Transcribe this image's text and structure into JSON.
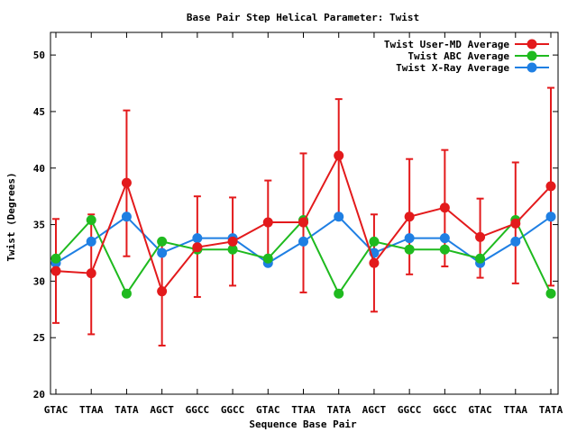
{
  "chart_data": {
    "type": "line",
    "title": "Base Pair Step Helical Parameter: Twist",
    "xlabel": "Sequence Base Pair",
    "ylabel": "Twist (Degrees)",
    "categories": [
      "GTAC",
      "TTAA",
      "TATA",
      "AGCT",
      "GGCC",
      "GGCC",
      "GTAC",
      "TTAA",
      "TATA",
      "AGCT",
      "GGCC",
      "GGCC",
      "GTAC",
      "TTAA",
      "TATA"
    ],
    "ylim": [
      20,
      52
    ],
    "yticks": [
      20,
      25,
      30,
      35,
      40,
      45,
      50
    ],
    "legend_position": "top-right",
    "grid": false,
    "series": [
      {
        "name": "Twist User-MD Average",
        "color": "#e31a1c",
        "values": [
          30.9,
          30.7,
          38.7,
          29.1,
          33.0,
          33.5,
          35.2,
          35.2,
          41.1,
          31.6,
          35.7,
          36.5,
          33.9,
          35.1,
          38.4
        ],
        "error_low": [
          26.3,
          25.3,
          32.2,
          24.3,
          28.6,
          29.6,
          31.6,
          29.0,
          35.9,
          27.3,
          30.6,
          31.3,
          30.3,
          29.8,
          29.6
        ],
        "error_high": [
          35.5,
          35.9,
          45.1,
          33.6,
          37.5,
          37.4,
          38.9,
          41.3,
          46.1,
          35.9,
          40.8,
          41.6,
          37.3,
          40.5,
          47.1
        ]
      },
      {
        "name": "Twist ABC Average",
        "color": "#1fba1f",
        "values": [
          32.0,
          35.4,
          28.9,
          33.5,
          32.8,
          32.8,
          32.0,
          35.4,
          28.9,
          33.5,
          32.8,
          32.8,
          32.0,
          35.4,
          28.9
        ]
      },
      {
        "name": "Twist X-Ray Average",
        "color": "#1f7fe3",
        "values": [
          31.6,
          33.5,
          35.7,
          32.5,
          33.8,
          33.8,
          31.6,
          33.5,
          35.7,
          32.5,
          33.8,
          33.8,
          31.6,
          33.5,
          35.7
        ]
      }
    ]
  }
}
